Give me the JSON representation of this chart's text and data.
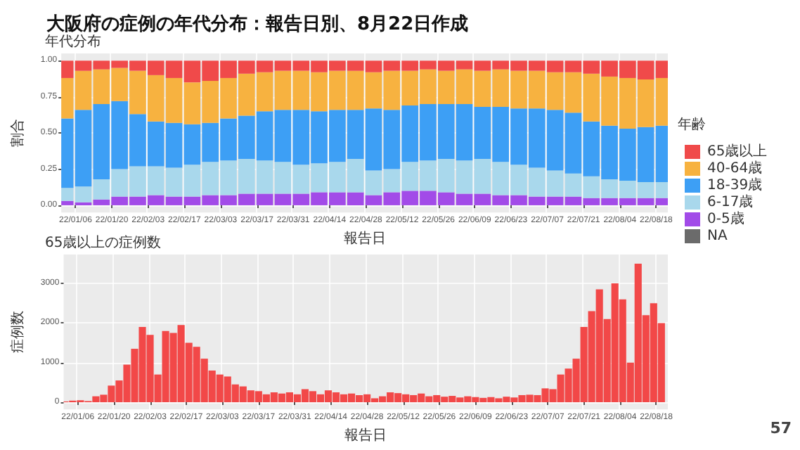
{
  "chart_data": [
    {
      "type": "bar",
      "title": "大阪府の症例の年代分布：報告日別、8月22日作成",
      "subtitle": "年代分布",
      "xlabel": "報告日",
      "ylabel": "割合",
      "legend_title": "年齢",
      "stacked": true,
      "grid": true,
      "legend": "right",
      "x": [
        "--01-02",
        "--01-09",
        "--01-16",
        "--01-23",
        "--01-30",
        "--02-06",
        "--02-13",
        "--02-20",
        "--02-27",
        "--03-06",
        "--03-13",
        "--03-20",
        "--03-27",
        "--04-03",
        "--04-10",
        "--04-17",
        "--04-24",
        "--05-01",
        "--05-08",
        "--05-15",
        "--05-22",
        "--05-29",
        "--06-05",
        "--06-12",
        "--06-19",
        "--06-26",
        "--07-03",
        "--07-10",
        "--07-17",
        "--07-24",
        "--07-31",
        "--08-07",
        "--08-14",
        "--08-21"
      ],
      "xlim": [
        "--01-01",
        "--08-22"
      ],
      "xticks": [
        {
          "value": "--01-06",
          "label": "22/01/06"
        },
        {
          "value": "--01-20",
          "label": "22/01/20"
        },
        {
          "value": "--02-03",
          "label": "22/02/03"
        },
        {
          "value": "--02-17",
          "label": "22/02/17"
        },
        {
          "value": "--03-03",
          "label": "22/03/03"
        },
        {
          "value": "--03-17",
          "label": "22/03/17"
        },
        {
          "value": "--03-31",
          "label": "22/03/31"
        },
        {
          "value": "--04-14",
          "label": "22/04/14"
        },
        {
          "value": "--04-28",
          "label": "22/04/28"
        },
        {
          "value": "--05-12",
          "label": "22/05/12"
        },
        {
          "value": "--05-26",
          "label": "22/05/26"
        },
        {
          "value": "--06-09",
          "label": "22/06/09"
        },
        {
          "value": "--06-23",
          "label": "22/06/23"
        },
        {
          "value": "--07-07",
          "label": "22/07/07"
        },
        {
          "value": "--07-21",
          "label": "22/07/21"
        },
        {
          "value": "--08-04",
          "label": "22/08/04"
        },
        {
          "value": "--08-18",
          "label": "22/08/18"
        }
      ],
      "ylim": [
        -0.05,
        1.05
      ],
      "yticks": [
        {
          "value": 0,
          "label": "0.00"
        },
        {
          "value": 0.25,
          "label": "0.25"
        },
        {
          "value": 0.5,
          "label": "0.50"
        },
        {
          "value": 0.75,
          "label": "0.75"
        },
        {
          "value": 1,
          "label": "1.00"
        }
      ],
      "series": [
        {
          "name": "NA",
          "color": "#6b6b6b",
          "values": [
            0,
            0,
            0,
            0,
            0,
            0,
            0,
            0,
            0,
            0,
            0,
            0,
            0,
            0,
            0,
            0,
            0,
            0,
            0,
            0,
            0,
            0,
            0,
            0,
            0,
            0,
            0,
            0,
            0,
            0,
            0,
            0,
            0,
            0
          ]
        },
        {
          "name": "0-5歳",
          "color": "#a24be8",
          "values": [
            0.03,
            0.02,
            0.04,
            0.06,
            0.06,
            0.07,
            0.06,
            0.06,
            0.07,
            0.07,
            0.08,
            0.08,
            0.08,
            0.08,
            0.09,
            0.09,
            0.09,
            0.07,
            0.09,
            0.1,
            0.1,
            0.09,
            0.08,
            0.08,
            0.07,
            0.07,
            0.06,
            0.06,
            0.06,
            0.05,
            0.05,
            0.05,
            0.05,
            0.05
          ]
        },
        {
          "name": "6-17歳",
          "color": "#a9d8ec",
          "values": [
            0.09,
            0.11,
            0.14,
            0.19,
            0.21,
            0.2,
            0.2,
            0.22,
            0.23,
            0.24,
            0.24,
            0.23,
            0.22,
            0.2,
            0.2,
            0.21,
            0.23,
            0.17,
            0.16,
            0.2,
            0.21,
            0.23,
            0.23,
            0.24,
            0.23,
            0.21,
            0.2,
            0.18,
            0.16,
            0.15,
            0.13,
            0.12,
            0.11,
            0.11
          ]
        },
        {
          "name": "18-39歳",
          "color": "#3d9ff5",
          "values": [
            0.48,
            0.53,
            0.52,
            0.47,
            0.36,
            0.31,
            0.31,
            0.28,
            0.27,
            0.29,
            0.3,
            0.34,
            0.36,
            0.38,
            0.36,
            0.36,
            0.34,
            0.43,
            0.41,
            0.39,
            0.39,
            0.38,
            0.39,
            0.36,
            0.38,
            0.39,
            0.41,
            0.42,
            0.42,
            0.38,
            0.37,
            0.36,
            0.38,
            0.39
          ]
        },
        {
          "name": "40-64歳",
          "color": "#f7b240",
          "values": [
            0.28,
            0.27,
            0.24,
            0.23,
            0.3,
            0.32,
            0.31,
            0.29,
            0.29,
            0.28,
            0.29,
            0.27,
            0.27,
            0.27,
            0.27,
            0.27,
            0.27,
            0.25,
            0.27,
            0.24,
            0.24,
            0.23,
            0.24,
            0.25,
            0.26,
            0.26,
            0.26,
            0.26,
            0.28,
            0.33,
            0.34,
            0.35,
            0.33,
            0.33
          ]
        },
        {
          "name": "65歳以上",
          "color": "#f04a4a",
          "values": [
            0.12,
            0.07,
            0.06,
            0.05,
            0.07,
            0.1,
            0.12,
            0.15,
            0.14,
            0.12,
            0.09,
            0.08,
            0.07,
            0.07,
            0.08,
            0.07,
            0.07,
            0.08,
            0.07,
            0.07,
            0.06,
            0.07,
            0.06,
            0.07,
            0.06,
            0.07,
            0.07,
            0.08,
            0.08,
            0.09,
            0.11,
            0.12,
            0.13,
            0.12
          ]
        }
      ]
    },
    {
      "type": "bar",
      "subtitle": "65歳以上の症例数",
      "xlabel": "報告日",
      "ylabel": "症例数",
      "grid": true,
      "color": "#f24848",
      "annotations": [
        "57"
      ],
      "x": [
        "--01-01",
        "--01-04",
        "--01-07",
        "--01-10",
        "--01-13",
        "--01-16",
        "--01-19",
        "--01-22",
        "--01-25",
        "--01-28",
        "--01-31",
        "--02-03",
        "--02-06",
        "--02-09",
        "--02-12",
        "--02-15",
        "--02-18",
        "--02-21",
        "--02-24",
        "--02-27",
        "--03-02",
        "--03-05",
        "--03-08",
        "--03-11",
        "--03-14",
        "--03-17",
        "--03-20",
        "--03-23",
        "--03-26",
        "--03-29",
        "--04-01",
        "--04-04",
        "--04-07",
        "--04-10",
        "--04-13",
        "--04-16",
        "--04-19",
        "--04-22",
        "--04-25",
        "--04-28",
        "--05-01",
        "--05-04",
        "--05-07",
        "--05-10",
        "--05-13",
        "--05-16",
        "--05-19",
        "--05-22",
        "--05-25",
        "--05-28",
        "--05-31",
        "--06-03",
        "--06-06",
        "--06-09",
        "--06-12",
        "--06-15",
        "--06-18",
        "--06-21",
        "--06-24",
        "--06-27",
        "--06-30",
        "--07-03",
        "--07-06",
        "--07-09",
        "--07-12",
        "--07-15",
        "--07-18",
        "--07-21",
        "--07-24",
        "--07-27",
        "--07-30",
        "--08-02",
        "--08-05",
        "--08-08",
        "--08-11",
        "--08-14",
        "--08-17",
        "--08-20"
      ],
      "values": [
        20,
        40,
        50,
        30,
        150,
        190,
        420,
        550,
        950,
        1350,
        1900,
        1700,
        700,
        1800,
        1750,
        1950,
        1500,
        1400,
        1100,
        800,
        700,
        650,
        450,
        400,
        300,
        280,
        200,
        250,
        220,
        250,
        200,
        330,
        280,
        200,
        300,
        250,
        200,
        220,
        180,
        200,
        100,
        150,
        250,
        230,
        200,
        180,
        220,
        150,
        180,
        140,
        160,
        120,
        150,
        130,
        110,
        130,
        100,
        140,
        120,
        180,
        190,
        180,
        350,
        330,
        700,
        850,
        1100,
        1900,
        2300,
        2850,
        2100,
        3000,
        2600,
        1000,
        3500,
        2200,
        2500,
        2000
      ],
      "xlim": [
        "--01-01",
        "--08-22"
      ],
      "xticks": [
        {
          "value": "--01-06",
          "label": "22/01/06"
        },
        {
          "value": "--01-20",
          "label": "22/01/20"
        },
        {
          "value": "--02-03",
          "label": "22/02/03"
        },
        {
          "value": "--02-17",
          "label": "22/02/17"
        },
        {
          "value": "--03-03",
          "label": "22/03/03"
        },
        {
          "value": "--03-17",
          "label": "22/03/17"
        },
        {
          "value": "--03-31",
          "label": "22/03/31"
        },
        {
          "value": "--04-14",
          "label": "22/04/14"
        },
        {
          "value": "--04-28",
          "label": "22/04/28"
        },
        {
          "value": "--05-12",
          "label": "22/05/12"
        },
        {
          "value": "--05-26",
          "label": "22/05/26"
        },
        {
          "value": "--06-09",
          "label": "22/06/09"
        },
        {
          "value": "--06-23",
          "label": "22/06/23"
        },
        {
          "value": "--07-07",
          "label": "22/07/07"
        },
        {
          "value": "--07-21",
          "label": "22/07/21"
        },
        {
          "value": "--08-04",
          "label": "22/08/04"
        },
        {
          "value": "--08-18",
          "label": "22/08/18"
        }
      ],
      "ylim": [
        -180,
        3730
      ],
      "yticks": [
        0,
        1000,
        2000,
        3000
      ]
    }
  ]
}
